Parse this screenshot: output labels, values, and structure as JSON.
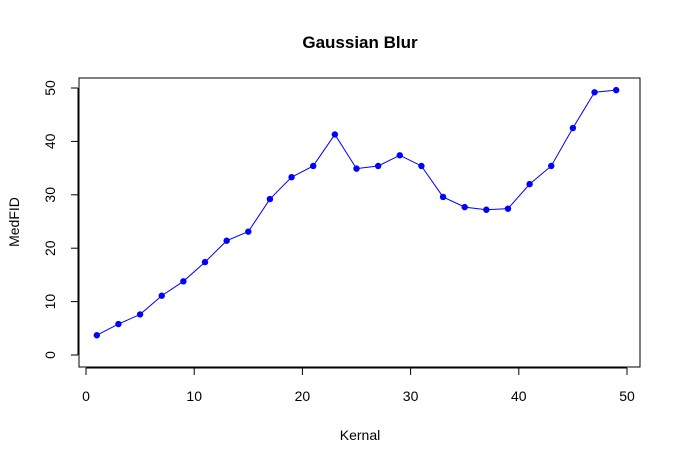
{
  "chart_data": {
    "type": "line",
    "title": "Gaussian Blur",
    "xlabel": "Kernal",
    "ylabel": "MedFID",
    "xlim": [
      0,
      50
    ],
    "ylim": [
      0,
      50
    ],
    "x_ticks": [
      0,
      10,
      20,
      30,
      40,
      50
    ],
    "y_ticks": [
      0,
      10,
      20,
      30,
      40,
      50
    ],
    "grid": false,
    "legend": "none",
    "series": [
      {
        "color": "#0000ff",
        "marker": "filled-circle",
        "x": [
          1,
          3,
          5,
          7,
          9,
          11,
          13,
          15,
          17,
          19,
          21,
          23,
          25,
          27,
          29,
          31,
          33,
          35,
          37,
          39,
          41,
          43,
          45,
          47,
          49
        ],
        "y": [
          3.7,
          5.8,
          7.6,
          11.1,
          13.8,
          17.4,
          21.4,
          23.1,
          29.2,
          33.3,
          35.4,
          41.3,
          34.9,
          35.4,
          37.4,
          35.4,
          29.6,
          27.7,
          27.2,
          27.4,
          32.0,
          35.4,
          42.5,
          49.2,
          49.6
        ]
      }
    ]
  }
}
